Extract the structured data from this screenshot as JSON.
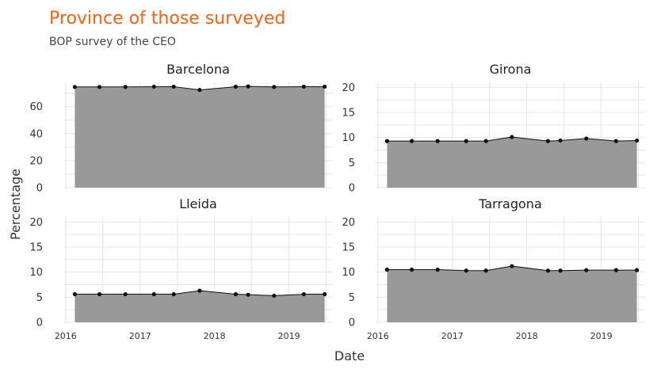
{
  "title": "Province of those surveyed",
  "subtitle": "BOP survey of the CEO",
  "colors": {
    "title": "#ff5f0f",
    "area": "#999999",
    "line": "#111111",
    "grid": "#e5e5e5"
  },
  "chart_data": {
    "type": "area",
    "xlabel": "Date",
    "ylabel": "Percentage",
    "x": [
      "2016-02-15",
      "2016-06-15",
      "2016-10-20",
      "2017-03-10",
      "2017-06-15",
      "2017-10-20",
      "2018-04-15",
      "2018-06-15",
      "2018-10-20",
      "2019-03-15",
      "2019-06-25"
    ],
    "xticks": [
      "2016",
      "2017",
      "2018",
      "2019"
    ],
    "grid": true,
    "facets": [
      {
        "name": "Barcelona",
        "ylim": [
          0,
          78
        ],
        "yticks": [
          "0",
          "20",
          "40",
          "60"
        ],
        "values": [
          74.6,
          74.6,
          74.6,
          74.8,
          74.8,
          72.4,
          74.8,
          75.0,
          74.6,
          74.8,
          74.8
        ]
      },
      {
        "name": "Girona",
        "ylim": [
          0,
          21
        ],
        "yticks": [
          "0",
          "5",
          "10",
          "15",
          "20"
        ],
        "values": [
          9.3,
          9.3,
          9.3,
          9.3,
          9.3,
          10.1,
          9.3,
          9.4,
          9.8,
          9.3,
          9.4
        ]
      },
      {
        "name": "Lleida",
        "ylim": [
          0,
          21
        ],
        "yticks": [
          "0",
          "5",
          "10",
          "15",
          "20"
        ],
        "values": [
          5.6,
          5.6,
          5.6,
          5.6,
          5.6,
          6.3,
          5.6,
          5.5,
          5.3,
          5.6,
          5.6
        ]
      },
      {
        "name": "Tarragona",
        "ylim": [
          0,
          21
        ],
        "yticks": [
          "0",
          "5",
          "10",
          "15",
          "20"
        ],
        "values": [
          10.5,
          10.5,
          10.5,
          10.3,
          10.3,
          11.2,
          10.3,
          10.3,
          10.4,
          10.4,
          10.4
        ]
      }
    ]
  }
}
